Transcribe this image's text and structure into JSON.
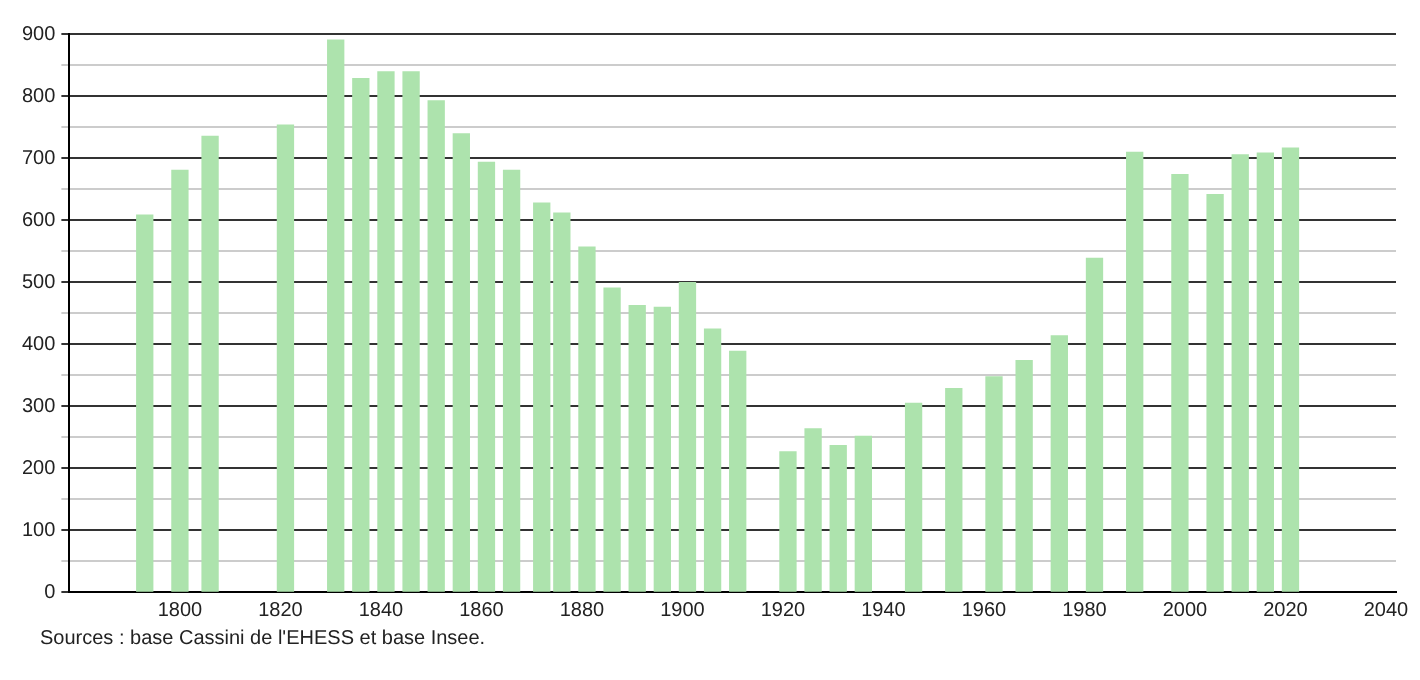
{
  "chart_data": {
    "type": "bar",
    "color": "#ade3ad",
    "x": [
      1793,
      1800,
      1806,
      1821,
      1831,
      1836,
      1841,
      1846,
      1851,
      1856,
      1861,
      1866,
      1872,
      1876,
      1881,
      1886,
      1891,
      1896,
      1901,
      1906,
      1911,
      1921,
      1926,
      1931,
      1936,
      1946,
      1954,
      1962,
      1968,
      1975,
      1982,
      1990,
      1999,
      2006,
      2011,
      2016,
      2021
    ],
    "values": [
      608,
      680,
      735,
      753,
      890,
      828,
      839,
      839,
      792,
      739,
      693,
      680,
      627,
      611,
      556,
      490,
      462,
      459,
      499,
      424,
      388,
      226,
      263,
      236,
      251,
      304,
      328,
      347,
      373,
      413,
      538,
      709,
      673,
      641,
      705,
      708,
      716
    ],
    "xlim": [
      1778,
      2042
    ],
    "xticks": [
      1800,
      1820,
      1840,
      1860,
      1880,
      1900,
      1920,
      1940,
      1960,
      1980,
      2000,
      2020,
      2040
    ],
    "ylim": [
      0,
      900
    ],
    "yticks": [
      0,
      {
        "value": 50,
        "label": null
      },
      100,
      {
        "value": 150,
        "label": null
      },
      200,
      {
        "value": 250,
        "label": null
      },
      300,
      {
        "value": 350,
        "label": null
      },
      400,
      {
        "value": 450,
        "label": null
      },
      500,
      {
        "value": 550,
        "label": null
      },
      600,
      {
        "value": 650,
        "label": null
      },
      700,
      {
        "value": 750,
        "label": null
      },
      800,
      {
        "value": 850,
        "label": null
      },
      900
    ],
    "grid": "y",
    "legend": false,
    "annotations": [
      "Sources : base Cassini de l'EHESS et base Insee."
    ]
  }
}
